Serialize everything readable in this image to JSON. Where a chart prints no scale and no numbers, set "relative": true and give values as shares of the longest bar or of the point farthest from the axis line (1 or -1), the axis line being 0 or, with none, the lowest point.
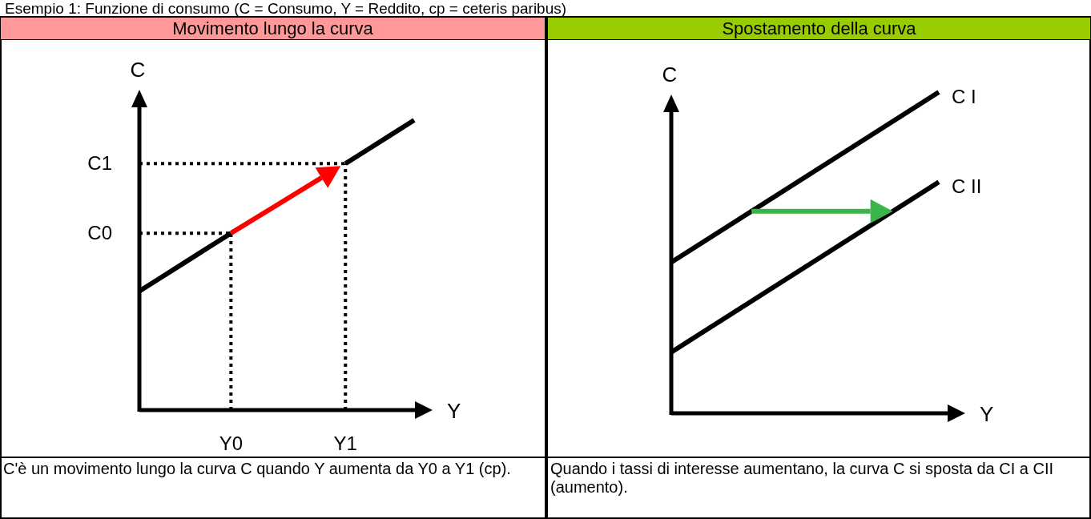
{
  "chart_data": [
    {
      "type": "line",
      "title": "Esempio 1: Funzione di consumo (C = Consumo, Y = Reddito, cp = ceteris paribus)",
      "subtitle": "Movimento lungo la curva",
      "xlabel": "Y",
      "ylabel": "C",
      "relative": true,
      "categories": [
        null,
        null,
        null,
        null,
        "Y0",
        null,
        null,
        null,
        null,
        "Y1",
        null,
        null,
        null
      ],
      "series": [
        {
          "color": "#000000",
          "values": [
            0.41,
            0.46,
            0.51,
            0.56,
            0.61,
            null,
            null,
            null,
            null,
            0.85,
            0.9,
            0.95,
            1
          ]
        }
      ],
      "ref_lines": [
        {
          "axis": "y",
          "value": 0.61,
          "label": "C0",
          "line_style": "dotted",
          "color": "#000000"
        },
        {
          "axis": "y",
          "value": 0.85,
          "label": "C1",
          "line_style": "dotted",
          "color": "#000000"
        },
        {
          "axis": "x",
          "value": "Y0",
          "line_style": "dotted",
          "color": "#000000"
        },
        {
          "axis": "x",
          "value": "Y1",
          "line_style": "dotted",
          "color": "#000000"
        }
      ],
      "annotations": [
        "C'è un movimento lungo la curva C quando Y aumenta da Y0 a Y1 (cp)."
      ]
    },
    {
      "type": "line",
      "title": "Spostamento della curva",
      "xlabel": "Y",
      "ylabel": "C",
      "relative": true,
      "categories": [
        null,
        null
      ],
      "series": [
        {
          "name": "C I",
          "color": "#000000",
          "values": [
            0.47,
            1
          ]
        },
        {
          "name": "C II",
          "color": "#000000",
          "values": [
            0.19,
            0.72
          ]
        }
      ],
      "annotations": [
        "Quando i tassi di interesse aumentano, la curva C si sposta da CI a CII (aumento)."
      ]
    }
  ]
}
